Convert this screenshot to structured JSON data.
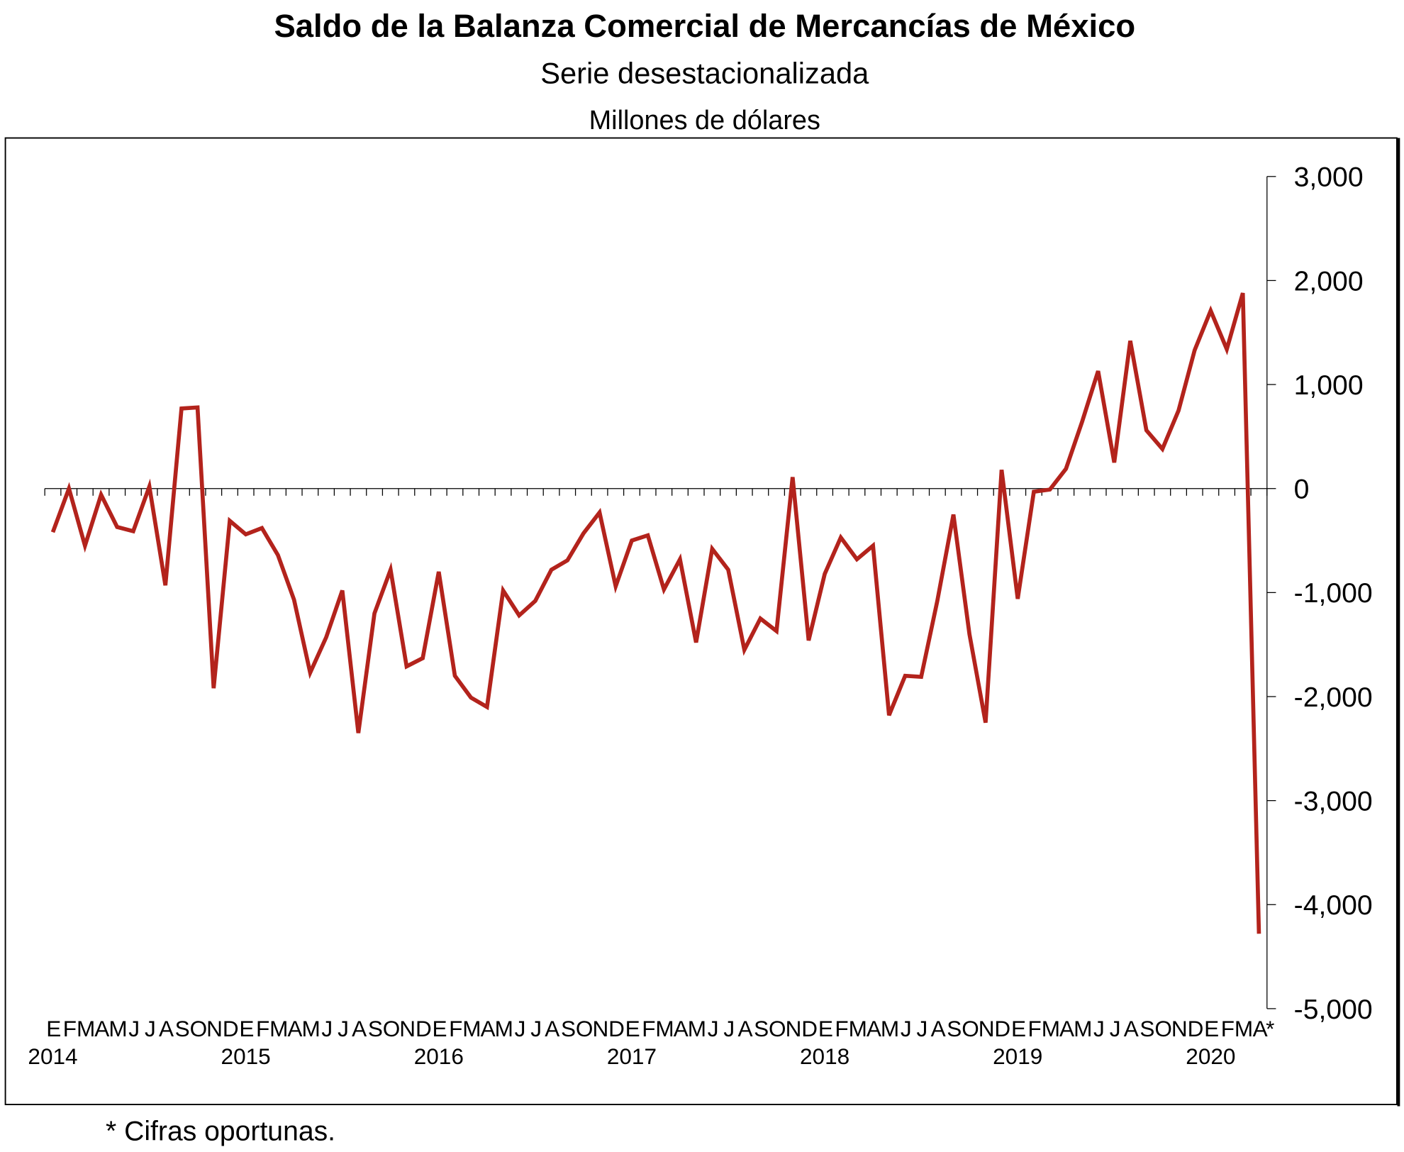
{
  "chart_data": {
    "type": "line",
    "title": "Saldo de la Balanza Comercial de Mercancías de México",
    "subtitle": "Serie desestacionalizada",
    "ylabel": "Millones de dólares",
    "footnote": "* Cifras oportunas.",
    "ylim": [
      -5000,
      3000
    ],
    "yticks": [
      3000,
      2000,
      1000,
      0,
      -1000,
      -2000,
      -3000,
      -4000,
      -5000
    ],
    "ytick_labels": [
      "3,000",
      "2,000",
      "1,000",
      "0",
      "-1,000",
      "-2,000",
      "-3,000",
      "-4,000",
      "-5,000"
    ],
    "grid": false,
    "line_color": "#b3231c",
    "years": [
      "2014",
      "2015",
      "2016",
      "2017",
      "2018",
      "2019",
      "2020"
    ],
    "month_labels": [
      "E",
      "F",
      "M",
      "A",
      "M",
      "J",
      "J",
      "A",
      "S",
      "O",
      "N",
      "D"
    ],
    "last_label_suffix": "*",
    "series": [
      {
        "name": "Saldo",
        "values": [
          -420,
          0,
          -550,
          -60,
          -370,
          -410,
          20,
          -930,
          770,
          780,
          -1920,
          -310,
          -440,
          -380,
          -640,
          -1070,
          -1770,
          -1430,
          -980,
          -2350,
          -1200,
          -780,
          -1710,
          -1630,
          -800,
          -1800,
          -2010,
          -2100,
          -980,
          -1220,
          -1080,
          -780,
          -690,
          -430,
          -230,
          -940,
          -500,
          -450,
          -970,
          -680,
          -1480,
          -580,
          -780,
          -1550,
          -1250,
          -1370,
          110,
          -1460,
          -820,
          -470,
          -680,
          -550,
          -2180,
          -1800,
          -1810,
          -1080,
          -250,
          -1400,
          -2250,
          180,
          -1060,
          -30,
          -10,
          190,
          640,
          1130,
          250,
          1420,
          560,
          380,
          750,
          1330,
          1710,
          1340,
          1880,
          -4280
        ]
      }
    ]
  }
}
